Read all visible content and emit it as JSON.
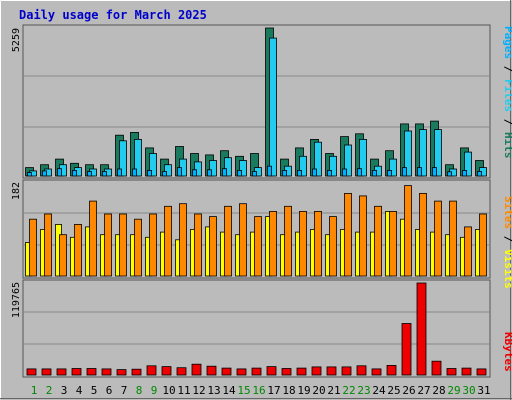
{
  "colors": {
    "background": "#bbbbbb",
    "title": "#0000cc",
    "hits": "#1a7a5e",
    "files": "#22ccee",
    "pages": "#00b0ff",
    "visits": "#ffff00",
    "sites": "#ff8800",
    "kbytes": "#ee0000",
    "weekday": "#000000",
    "weekend": "#008800"
  },
  "chart_data": [
    {
      "type": "bar",
      "title": "Daily usage for March 2025",
      "ylabel": "Pages / Files / Hits",
      "ymax_label": "5259",
      "ylim": [
        0,
        5259
      ],
      "categories": [
        "1",
        "2",
        "3",
        "4",
        "5",
        "6",
        "7",
        "8",
        "9",
        "10",
        "11",
        "12",
        "13",
        "14",
        "15",
        "16",
        "17",
        "18",
        "19",
        "20",
        "21",
        "22",
        "23",
        "24",
        "25",
        "26",
        "27",
        "28",
        "29",
        "30",
        "31"
      ],
      "weekend_days": [
        "1",
        "2",
        "8",
        "9",
        "15",
        "16",
        "22",
        "23",
        "29",
        "30"
      ],
      "series": [
        {
          "name": "Hits",
          "values": [
            300,
            400,
            600,
            450,
            400,
            400,
            1450,
            1550,
            1000,
            600,
            1050,
            800,
            750,
            900,
            700,
            800,
            5259,
            600,
            1000,
            1300,
            800,
            1400,
            1500,
            600,
            900,
            1850,
            1850,
            1950,
            400,
            1000,
            550
          ]
        },
        {
          "name": "Files",
          "values": [
            180,
            250,
            400,
            300,
            250,
            250,
            1250,
            1300,
            800,
            400,
            600,
            500,
            550,
            650,
            550,
            300,
            4900,
            350,
            700,
            1200,
            700,
            1100,
            1300,
            350,
            600,
            1600,
            1650,
            1650,
            250,
            850,
            300
          ]
        },
        {
          "name": "Pages",
          "values": [
            120,
            180,
            260,
            200,
            160,
            160,
            250,
            250,
            200,
            160,
            300,
            220,
            220,
            260,
            200,
            160,
            350,
            200,
            200,
            250,
            200,
            250,
            260,
            200,
            200,
            300,
            300,
            300,
            150,
            200,
            160
          ]
        }
      ]
    },
    {
      "type": "bar",
      "ylabel": "Sites / Visits",
      "ymax_label": "182",
      "ylim": [
        0,
        182
      ],
      "categories": [
        "1",
        "2",
        "3",
        "4",
        "5",
        "6",
        "7",
        "8",
        "9",
        "10",
        "11",
        "12",
        "13",
        "14",
        "15",
        "16",
        "17",
        "18",
        "19",
        "20",
        "21",
        "22",
        "23",
        "24",
        "25",
        "26",
        "27",
        "28",
        "29",
        "30",
        "31"
      ],
      "series": [
        {
          "name": "Visits",
          "values": [
            65,
            90,
            100,
            75,
            95,
            80,
            80,
            80,
            75,
            85,
            70,
            90,
            95,
            85,
            80,
            85,
            115,
            80,
            85,
            90,
            80,
            90,
            85,
            85,
            125,
            110,
            90,
            85,
            80,
            75,
            90
          ]
        },
        {
          "name": "Sites",
          "values": [
            110,
            120,
            80,
            100,
            145,
            120,
            120,
            110,
            120,
            135,
            140,
            120,
            115,
            135,
            140,
            115,
            125,
            135,
            125,
            125,
            115,
            160,
            155,
            135,
            125,
            175,
            160,
            145,
            145,
            95,
            120
          ]
        }
      ]
    },
    {
      "type": "bar",
      "ylabel": "KBytes",
      "ymax_label": "119765",
      "ylim": [
        0,
        119765
      ],
      "categories": [
        "1",
        "2",
        "3",
        "4",
        "5",
        "6",
        "7",
        "8",
        "9",
        "10",
        "11",
        "12",
        "13",
        "14",
        "15",
        "16",
        "17",
        "18",
        "19",
        "20",
        "21",
        "22",
        "23",
        "24",
        "25",
        "26",
        "27",
        "28",
        "29",
        "30",
        "31"
      ],
      "series": [
        {
          "name": "KBytes",
          "values": [
            8000,
            8000,
            8000,
            8500,
            8500,
            8000,
            7000,
            7500,
            12000,
            11000,
            9500,
            14000,
            11500,
            9000,
            8000,
            9000,
            11000,
            8500,
            9000,
            10500,
            10500,
            10500,
            12000,
            8000,
            12500,
            67000,
            119765,
            18000,
            8500,
            9000,
            8000
          ]
        }
      ]
    }
  ]
}
